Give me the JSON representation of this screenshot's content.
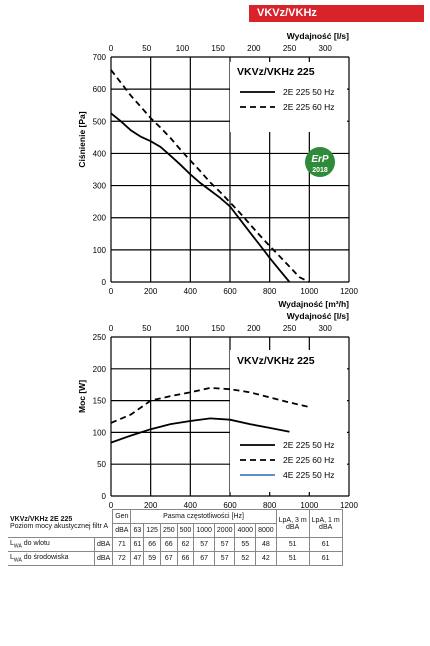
{
  "badge": "VKVz/VKHz",
  "chart_data": [
    {
      "type": "line",
      "title": "VKVz/VKHz 225",
      "xlabel": "Wydajność [m³/h]",
      "x2label": "Wydajność [l/s]",
      "ylabel": "Ciśnienie [Pa]",
      "xlim": [
        0,
        1200
      ],
      "x2lim": [
        0,
        333.3
      ],
      "ylim": [
        0,
        700
      ],
      "xticks": [
        "0",
        "200",
        "400",
        "600",
        "800",
        "1000",
        "1200"
      ],
      "x2ticks": [
        "0",
        "50",
        "100",
        "150",
        "200",
        "250",
        "300"
      ],
      "yticks": [
        "0",
        "100",
        "200",
        "300",
        "400",
        "500",
        "600",
        "700"
      ],
      "grid": true,
      "legend": "top-right",
      "badge_text": "ErP 2018",
      "series": [
        {
          "name": "2E 225 50 Hz",
          "style": "solid",
          "color": "#000000",
          "x": [
            0,
            50,
            100,
            150,
            200,
            250,
            300,
            350,
            400,
            450,
            500,
            550,
            600,
            650,
            700,
            750,
            800,
            850,
            900
          ],
          "y": [
            525,
            500,
            472,
            452,
            438,
            420,
            393,
            365,
            335,
            308,
            285,
            262,
            235,
            195,
            155,
            115,
            75,
            37,
            0
          ]
        },
        {
          "name": "2E 225 60 Hz",
          "style": "dashed",
          "color": "#000000",
          "x": [
            0,
            50,
            100,
            150,
            200,
            250,
            300,
            350,
            400,
            450,
            500,
            550,
            600,
            650,
            700,
            750,
            800,
            850,
            900,
            950,
            1000
          ],
          "y": [
            660,
            620,
            580,
            545,
            510,
            480,
            448,
            412,
            378,
            345,
            310,
            280,
            248,
            215,
            180,
            145,
            112,
            80,
            48,
            15,
            0
          ]
        }
      ]
    },
    {
      "type": "line",
      "title": "VKVz/VKHz 225",
      "xlabel": "Wydajność [m³/h]",
      "x2label": "Wydajność [l/s]",
      "ylabel": "Moc [W]",
      "xlim": [
        0,
        1200
      ],
      "x2lim": [
        0,
        333.3
      ],
      "ylim": [
        0,
        250
      ],
      "xticks": [
        "0",
        "200",
        "400",
        "600",
        "800",
        "1000",
        "1200"
      ],
      "x2ticks": [
        "0",
        "50",
        "100",
        "150",
        "200",
        "250",
        "300"
      ],
      "yticks": [
        "0",
        "50",
        "100",
        "150",
        "200",
        "250"
      ],
      "grid": true,
      "legend": "bottom-right",
      "series": [
        {
          "name": "2E 225 50 Hz",
          "style": "solid",
          "color": "#000000",
          "x": [
            0,
            100,
            200,
            300,
            400,
            500,
            600,
            700,
            800,
            900
          ],
          "y": [
            84,
            95,
            105,
            113,
            118,
            122,
            120,
            113,
            107,
            101
          ]
        },
        {
          "name": "2E 225 60 Hz",
          "style": "dashed",
          "color": "#000000",
          "x": [
            0,
            100,
            200,
            300,
            400,
            500,
            600,
            700,
            800,
            900,
            1000
          ],
          "y": [
            115,
            128,
            150,
            157,
            163,
            170,
            168,
            163,
            155,
            147,
            140
          ]
        },
        {
          "name": "4E 225 50 Hz",
          "style": "solid",
          "color": "#4a7fc1",
          "x": [],
          "y": []
        }
      ]
    }
  ],
  "table": {
    "title": "VKVz/VKHz 2E 225",
    "subtitle": "Poziom mocy akustycznej filtr A",
    "gen_header": "Gen",
    "band_header": "Pasma częstotliwości [Hz]",
    "lpa3_header": "LpA, 3 m",
    "lpa1_header": "LpA, 1 m",
    "lpa_unit": "dBA",
    "dba": "dBA",
    "bands": [
      "63",
      "125",
      "250",
      "500",
      "1000",
      "2000",
      "4000",
      "8000"
    ],
    "rows": [
      {
        "label_main": "L",
        "label_sub": "WA",
        "label_rest": " do wlotu",
        "unit": "dBA",
        "gen": "71",
        "values": [
          "61",
          "66",
          "66",
          "62",
          "57",
          "57",
          "55",
          "48"
        ],
        "lpa3": "51",
        "lpa1": "61"
      },
      {
        "label_main": "L",
        "label_sub": "WA",
        "label_rest": " do środowiska",
        "unit": "dBA",
        "gen": "72",
        "values": [
          "47",
          "59",
          "67",
          "66",
          "67",
          "57",
          "52",
          "42"
        ],
        "lpa3": "51",
        "lpa1": "61"
      }
    ]
  }
}
